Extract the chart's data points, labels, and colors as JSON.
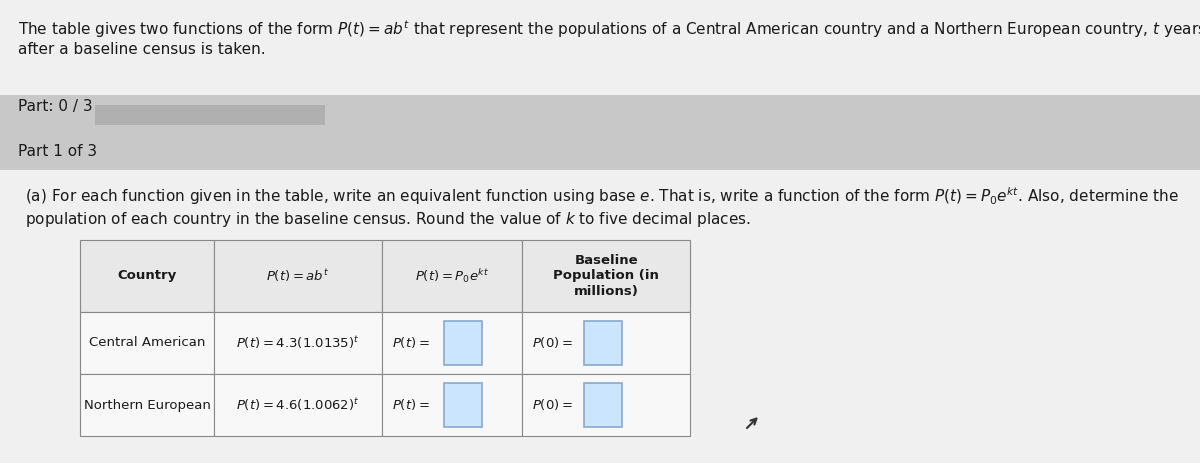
{
  "bg_color": "#d8d8d8",
  "white": "#f0f0f0",
  "bright_white": "#ffffff",
  "dark_text": "#1a1a1a",
  "header_bg": "#c0c0c0",
  "part_bg": "#c8c8c8",
  "progress_bar_color": "#b0b0b0",
  "intro_text_line1": "The table gives two functions of the form $P(t)=ab^t$ that represent the populations of a Central American country and a Northern European country, $t$ years",
  "intro_text_line2": "after a baseline census is taken.",
  "part_label": "Part: 0 / 3",
  "part1_label": "Part 1 of 3",
  "instr_line1": "(a) For each function given in the table, write an equivalent function using base $e$. That is, write a function of the form $P(t)=P_0e^{kt}$. Also, determine the",
  "instr_line2": "population of each country in the baseline census. Round the value of $k$ to five decimal places.",
  "col_headers": [
    "Country",
    "$P(t)=ab^t$",
    "$P(t)=P_0e^{kt}$",
    "Baseline\nPopulation (in\nmillions)"
  ],
  "row1_col0": "Central American",
  "row1_col1": "$P(t)=4.3(1.0135)^t$",
  "row2_col0": "Northern European",
  "row2_col1": "$P(t)=4.6(1.0062)^t$",
  "pt_label": "$P(t)=$",
  "p0_label": "$P(0)=$",
  "input_box_fill": "#cce5ff",
  "input_box_edge": "#88aacc",
  "table_header_bg": "#e8e8e8",
  "table_row_bg": "#f8f8f8",
  "table_border": "#888888"
}
